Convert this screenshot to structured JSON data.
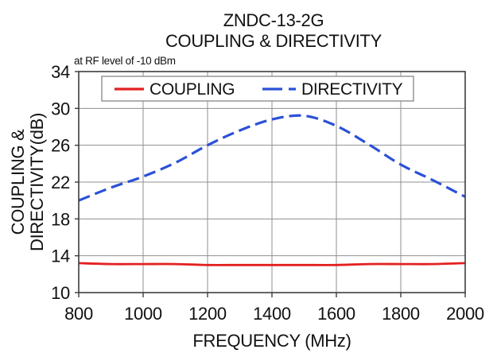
{
  "title": {
    "line1": "ZNDC-13-2G",
    "line2": "COUPLING & DIRECTIVITY"
  },
  "subtitle": "at RF level of -10 dBm",
  "axes": {
    "x_label": "FREQUENCY (MHz)",
    "y_label_line1": "COUPLING &",
    "y_label_line2": "DIRECTIVITY(dB)"
  },
  "colors": {
    "coupling": "#e32020",
    "directivity": "#2b51d8",
    "grid": "#8f8f8f",
    "axis": "#3d3d3d",
    "text": "#111111",
    "legend_border": "#8f8f8f",
    "background": "#ffffff"
  },
  "chart_data": {
    "type": "line",
    "title": "ZNDC-13-2G COUPLING & DIRECTIVITY",
    "subtitle": "at RF level of -10 dBm",
    "xlabel": "FREQUENCY (MHz)",
    "ylabel": "COUPLING & DIRECTIVITY(dB)",
    "xlim": [
      800,
      2000
    ],
    "ylim": [
      10,
      34
    ],
    "xticks": [
      800,
      1000,
      1200,
      1400,
      1600,
      1800,
      2000
    ],
    "yticks": [
      10,
      14,
      18,
      22,
      26,
      30,
      34
    ],
    "grid": true,
    "legend_position": "top-inside",
    "x": [
      800,
      900,
      1000,
      1100,
      1200,
      1300,
      1400,
      1500,
      1600,
      1700,
      1800,
      1900,
      2000
    ],
    "series": [
      {
        "name": "COUPLING",
        "color": "#e32020",
        "style": "solid",
        "values": [
          13.2,
          13.1,
          13.1,
          13.1,
          13.0,
          13.0,
          13.0,
          13.0,
          13.0,
          13.1,
          13.1,
          13.1,
          13.2
        ]
      },
      {
        "name": "DIRECTIVITY",
        "color": "#2b51d8",
        "style": "dashed",
        "values": [
          20.0,
          21.4,
          22.6,
          24.1,
          26.0,
          27.6,
          28.8,
          29.2,
          28.1,
          26.1,
          23.9,
          22.2,
          20.4
        ]
      }
    ]
  }
}
